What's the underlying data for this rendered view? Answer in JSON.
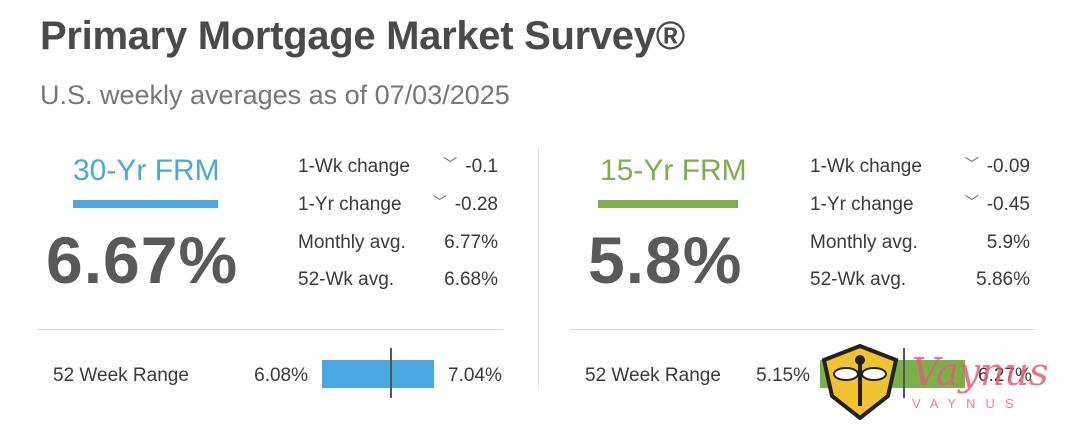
{
  "header": {
    "title": "Primary Mortgage Market Survey®",
    "subtitle": "U.S. weekly averages as of 07/03/2025"
  },
  "colors": {
    "frm30": "#4aa8e0",
    "frm15": "#7ab04a",
    "title": "#4a4a4a"
  },
  "frm30": {
    "label": "30-Yr FRM",
    "rate": "6.67%",
    "stats": [
      {
        "label": "1-Wk change",
        "value": "-0.1",
        "icon": "chevron-down-icon"
      },
      {
        "label": "1-Yr change",
        "value": "-0.28",
        "icon": "chevron-down-icon"
      },
      {
        "label": "Monthly avg.",
        "value": "6.77%"
      },
      {
        "label": "52-Wk avg.",
        "value": "6.68%"
      }
    ],
    "range": {
      "label": "52 Week Range",
      "low": "6.08%",
      "high": "7.04%",
      "low_num": 6.08,
      "high_num": 7.04,
      "current_num": 6.67
    }
  },
  "frm15": {
    "label": "15-Yr FRM",
    "rate": "5.8%",
    "stats": [
      {
        "label": "1-Wk change",
        "value": "-0.09",
        "icon": "chevron-down-icon"
      },
      {
        "label": "1-Yr change",
        "value": "-0.45",
        "icon": "chevron-down-icon"
      },
      {
        "label": "Monthly avg.",
        "value": "5.9%"
      },
      {
        "label": "52-Wk avg.",
        "value": "5.86%"
      }
    ],
    "range": {
      "label": "52 Week Range",
      "low": "5.15%",
      "high": "6.27%",
      "low_num": 5.15,
      "high_num": 6.27,
      "current_num": 5.8
    }
  },
  "watermark": {
    "script": "Vaynus",
    "caps": "VAYNUS"
  }
}
